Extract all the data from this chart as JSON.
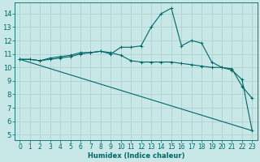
{
  "xlabel": "Humidex (Indice chaleur)",
  "bg_color": "#c8e8e8",
  "grid_color": "#aacccc",
  "line_color": "#006666",
  "xlim": [
    -0.5,
    23.5
  ],
  "ylim": [
    4.6,
    14.8
  ],
  "yticks": [
    5,
    6,
    7,
    8,
    9,
    10,
    11,
    12,
    13,
    14
  ],
  "xticks": [
    0,
    1,
    2,
    3,
    4,
    5,
    6,
    7,
    8,
    9,
    10,
    11,
    12,
    13,
    14,
    15,
    16,
    17,
    18,
    19,
    20,
    21,
    22,
    23
  ],
  "line1_x": [
    0,
    1,
    2,
    3,
    4,
    5,
    6,
    7,
    8,
    9,
    10,
    11,
    12,
    13,
    14,
    15,
    16,
    17,
    18,
    19,
    20,
    21,
    22,
    23
  ],
  "line1_y": [
    10.6,
    10.6,
    10.5,
    10.7,
    10.8,
    10.9,
    11.1,
    11.1,
    11.2,
    11.0,
    11.5,
    11.5,
    11.6,
    13.0,
    14.0,
    14.4,
    11.6,
    12.0,
    11.8,
    10.4,
    10.0,
    9.9,
    8.6,
    7.7
  ],
  "line2_x": [
    0,
    1,
    2,
    3,
    4,
    5,
    6,
    7,
    8,
    9,
    10,
    11,
    12,
    13,
    14,
    15,
    16,
    17,
    18,
    19,
    20,
    21,
    22,
    23
  ],
  "line2_y": [
    10.6,
    10.6,
    10.5,
    10.6,
    10.7,
    10.8,
    11.0,
    11.1,
    11.2,
    11.1,
    10.9,
    10.5,
    10.4,
    10.4,
    10.4,
    10.4,
    10.3,
    10.2,
    10.1,
    10.0,
    10.0,
    9.8,
    9.1,
    5.3
  ],
  "line3_x": [
    0,
    23
  ],
  "line3_y": [
    10.6,
    5.3
  ],
  "lw": 0.8,
  "ms": 2.5,
  "tick_fontsize": 5.5,
  "xlabel_fontsize": 6.0
}
